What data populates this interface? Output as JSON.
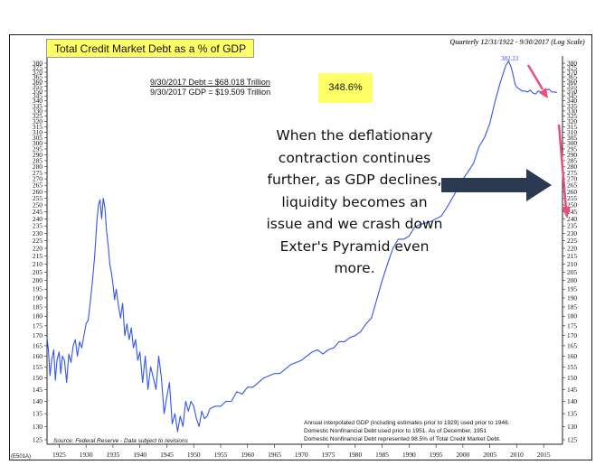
{
  "header": {
    "title": "Total Credit Market Debt as a % of GDP",
    "subtitle": "Quarterly 12/31/1922 - 9/30/2017 (Log Scale)"
  },
  "debt_box": {
    "row1": "9/30/2017  Debt  =   $68.018 Trillion",
    "row2": "9/30/2017  GDP  =   $19.509 Trillion",
    "ratio": "348.6%"
  },
  "annotation": "When the deflationary contraction continues further, as GDP declines, liquidity becomes an issue and we crash down Exter's Pyramid even more.",
  "footer": {
    "notes": [
      "Annual interpolated GDP (including estimates prior to 1929) used prior to 1946.",
      "Domestic Nonfinancial Debt used prior to 1951. As of December, 1951",
      "Domestic Nonfinancial Debt represented 98.5% of Total Credit Market Debt."
    ],
    "source": "Source: Federal Reserve - Data subject to revisions",
    "code": "(E501A)"
  },
  "colors": {
    "series": "#3355ee",
    "highlight": "#ffff66",
    "arrow_dark": "#2b3a50",
    "arrow_red": "#e8507a"
  },
  "chart_data": {
    "type": "line",
    "title": "Total Credit Market Debt as a % of GDP",
    "scale": "log",
    "grid": false,
    "xlim": [
      1922.75,
      2018.5
    ],
    "ylim": [
      125,
      380
    ],
    "x_ticks": [
      "1925",
      "1930",
      "1935",
      "1940",
      "1945",
      "1950",
      "1955",
      "1960",
      "1965",
      "1970",
      "1975",
      "1980",
      "1985",
      "1990",
      "1995",
      "2000",
      "2005",
      "2010",
      "2015"
    ],
    "y_ticks": [
      "125",
      "130",
      "135",
      "140",
      "145",
      "150",
      "155",
      "160",
      "165",
      "170",
      "175",
      "180",
      "185",
      "190",
      "195",
      "200",
      "205",
      "210",
      "215",
      "220",
      "225",
      "230",
      "235",
      "240",
      "245",
      "250",
      "255",
      "260",
      "265",
      "270",
      "275",
      "280",
      "285",
      "290",
      "295",
      "300",
      "305",
      "310",
      "315",
      "320",
      "325",
      "330",
      "335",
      "340",
      "345",
      "350",
      "355",
      "360",
      "365",
      "370",
      "375",
      "380"
    ],
    "peak_label": "382.23",
    "series": [
      {
        "x": [
          1922.75,
          1923.0,
          1923.3,
          1923.6,
          1924.0,
          1924.3,
          1924.6,
          1925.0,
          1925.3,
          1925.6,
          1926.0,
          1926.4,
          1926.8,
          1927.2,
          1927.6,
          1928.0,
          1928.4,
          1928.8,
          1929.2,
          1929.6,
          1930.0,
          1930.4,
          1930.8,
          1931.2,
          1931.6,
          1932.0,
          1932.3,
          1932.6,
          1932.9,
          1933.2,
          1933.5,
          1933.8,
          1934.1,
          1934.4,
          1934.7,
          1935.0,
          1935.3,
          1935.6,
          1936.0,
          1936.4,
          1936.8,
          1937.2,
          1937.6,
          1938.0,
          1938.4,
          1938.8,
          1939.2,
          1939.6,
          1940.0,
          1940.5,
          1941.0,
          1941.5,
          1942.0,
          1942.5,
          1943.0,
          1943.5,
          1944.0,
          1944.5,
          1945.0,
          1945.5,
          1946.0,
          1946.5,
          1947.0,
          1947.5,
          1948.0,
          1948.5,
          1949.0,
          1949.5,
          1950.0,
          1950.5,
          1951.0,
          1951.5,
          1952.0,
          1952.5,
          1953.0,
          1954.0,
          1955.0,
          1956.0,
          1957.0,
          1958.0,
          1959.0,
          1960.0,
          1961.0,
          1962.0,
          1963.0,
          1964.0,
          1965.0,
          1966.0,
          1967.0,
          1968.0,
          1969.0,
          1970.0,
          1971.0,
          1972.0,
          1973.0,
          1974.0,
          1975.0,
          1976.0,
          1977.0,
          1978.0,
          1979.0,
          1980.0,
          1981.0,
          1982.0,
          1983.0,
          1984.0,
          1985.0,
          1986.0,
          1987.0,
          1988.0,
          1989.0,
          1990.0,
          1991.0,
          1992.0,
          1993.0,
          1994.0,
          1995.0,
          1996.0,
          1997.0,
          1998.0,
          1999.0,
          2000.0,
          2001.0,
          2002.0,
          2003.0,
          2004.0,
          2005.0,
          2006.0,
          2007.0,
          2008.0,
          2008.5,
          2009.0,
          2009.3,
          2009.7,
          2010.0,
          2010.5,
          2011.0,
          2011.5,
          2012.0,
          2012.5,
          2013.0,
          2013.5,
          2014.0,
          2014.5,
          2015.0,
          2015.5,
          2016.0,
          2016.5,
          2017.0,
          2017.5
        ],
        "y": [
          169,
          163,
          151,
          158,
          163,
          149,
          158,
          162,
          152,
          160,
          158,
          148,
          161,
          157,
          165,
          168,
          160,
          167,
          164,
          170,
          176,
          178,
          188,
          200,
          215,
          238,
          250,
          254,
          240,
          255,
          248,
          232,
          222,
          210,
          205,
          198,
          189,
          195,
          186,
          179,
          187,
          170,
          176,
          168,
          174,
          164,
          168,
          158,
          162,
          148,
          160,
          145,
          155,
          150,
          145,
          160,
          150,
          135,
          142,
          148,
          131,
          135,
          128,
          134,
          130,
          140,
          136,
          140,
          138,
          133,
          130,
          136,
          133,
          134,
          137,
          138,
          138,
          140,
          140,
          144,
          143,
          146,
          146,
          148,
          150,
          151,
          152,
          152,
          154,
          156,
          157,
          158,
          160,
          162,
          163,
          161,
          163,
          164,
          167,
          167,
          169,
          170,
          172,
          176,
          179,
          189,
          200,
          210,
          220,
          226,
          226,
          228,
          234,
          236,
          237,
          238,
          240,
          242,
          248,
          255,
          262,
          270,
          276,
          283,
          297,
          305,
          318,
          340,
          360,
          378,
          382.23,
          375,
          368,
          357,
          354,
          352,
          350,
          350,
          349,
          351,
          348,
          347,
          350,
          349,
          350,
          351,
          352,
          349,
          349,
          348.6
        ]
      }
    ]
  }
}
